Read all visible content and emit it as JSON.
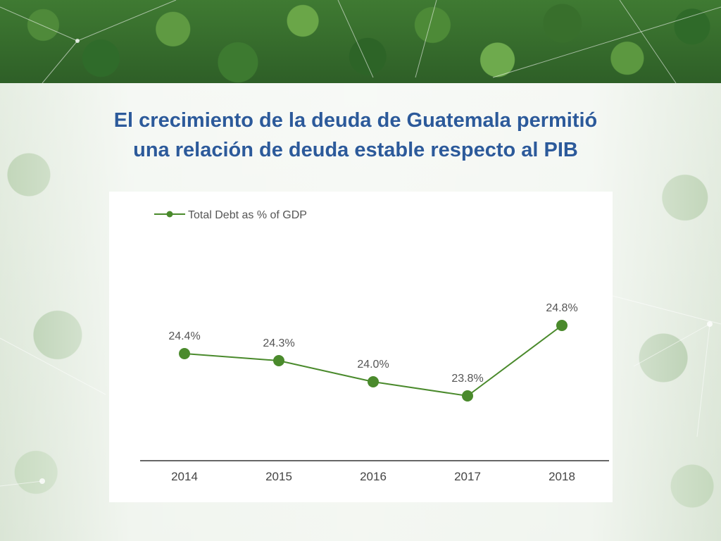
{
  "slide": {
    "title_line1": "El crecimiento de la deuda de Guatemala permitió",
    "title_line2": "una relación de deuda estable respecto al PIB"
  },
  "colors": {
    "title": "#2c5a9a",
    "series": "#4a8a2c",
    "axis": "#666666",
    "text": "#555555"
  },
  "chart_data": {
    "type": "line",
    "categories": [
      "2014",
      "2015",
      "2016",
      "2017",
      "2018"
    ],
    "series": [
      {
        "name": "Total Debt as % of GDP",
        "values": [
          24.4,
          24.3,
          24.0,
          23.8,
          24.8
        ],
        "labels": [
          "24.4%",
          "24.3%",
          "24.0%",
          "23.8%",
          "24.8%"
        ]
      }
    ],
    "title": "",
    "xlabel": "",
    "ylabel": "",
    "legend_position": "top-left",
    "grid": false
  }
}
